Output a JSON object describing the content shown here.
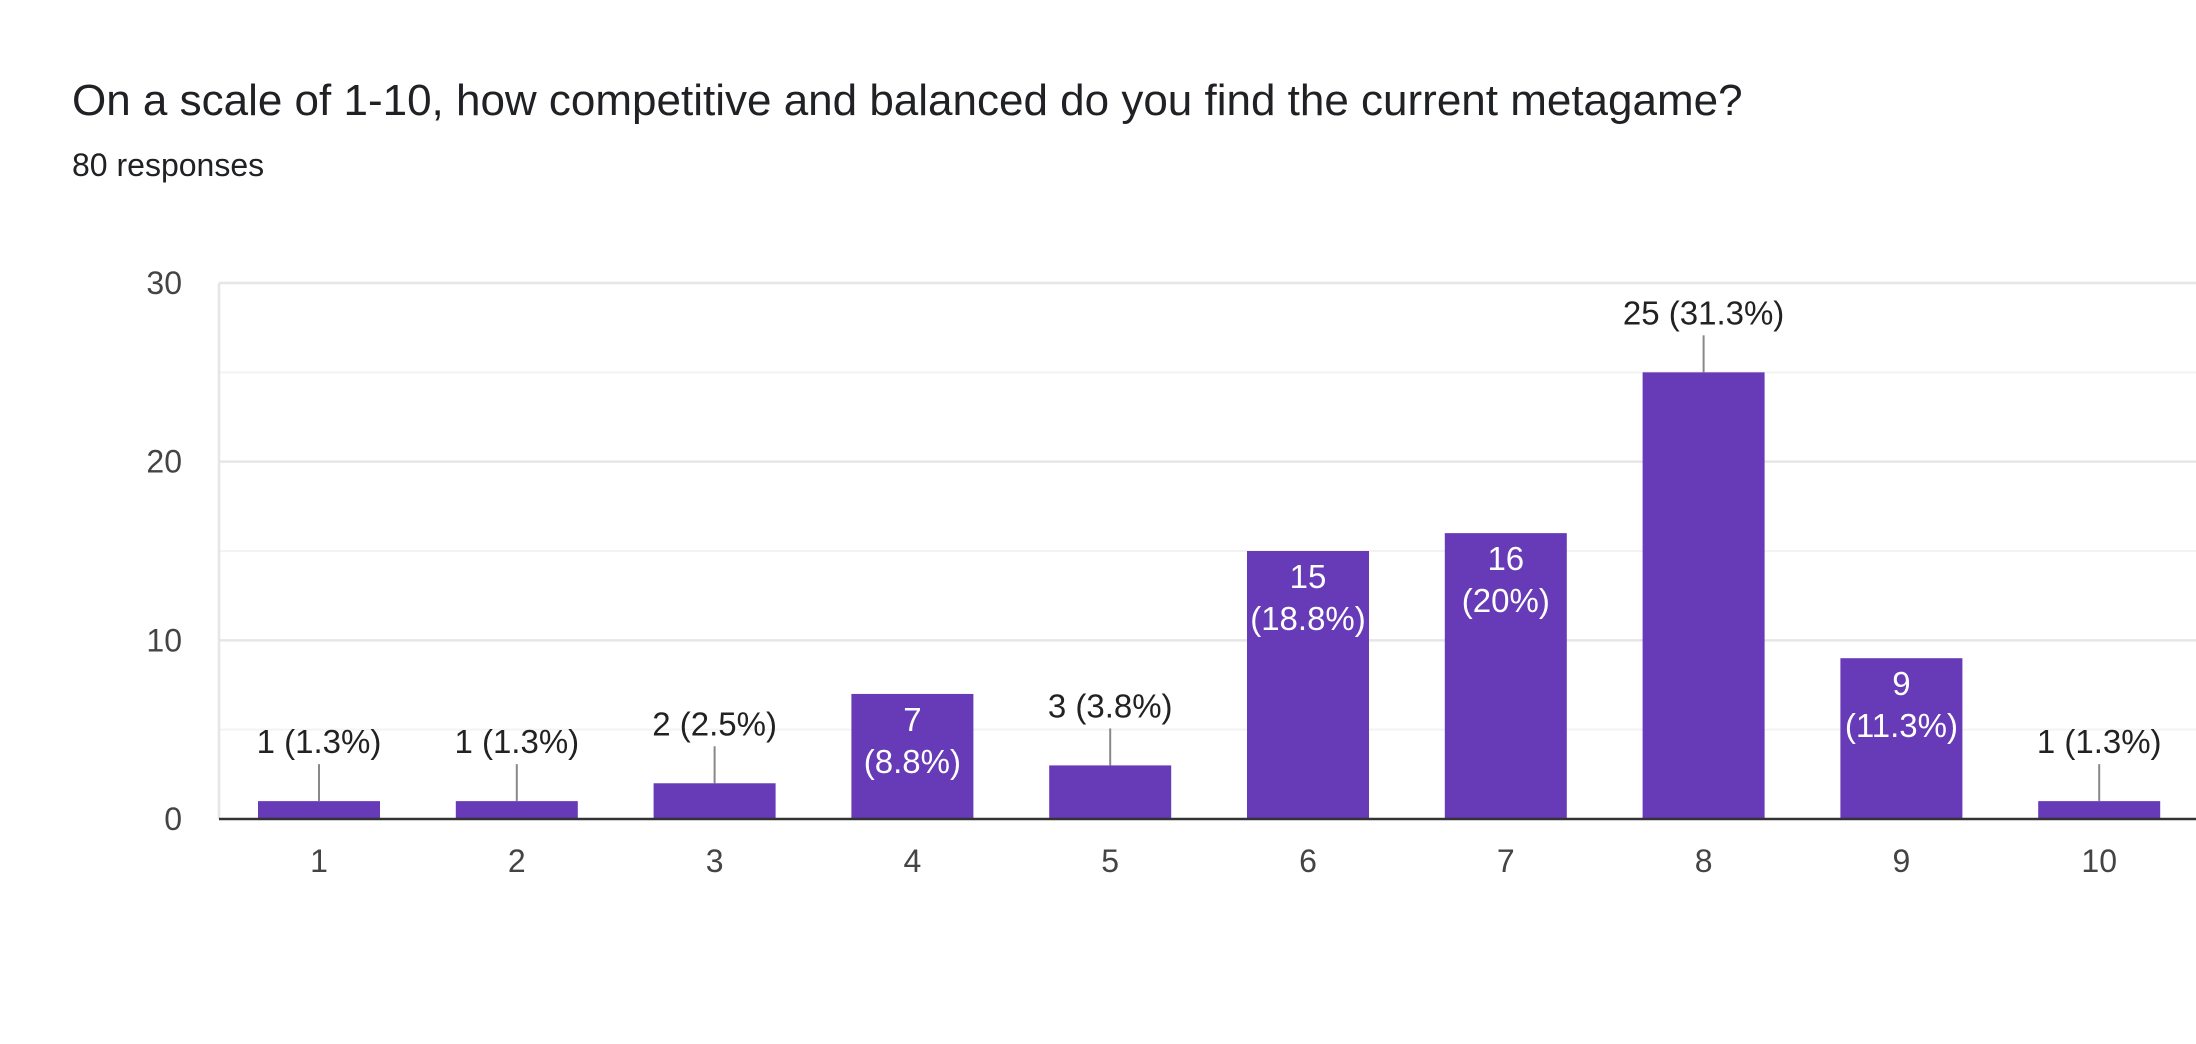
{
  "header": {
    "question": "On a scale of 1-10, how competitive and balanced do you find the current metagame?",
    "responses": "80 responses"
  },
  "colors": {
    "bar": "#673ab7",
    "gridline": "#ebebeb",
    "axis": "#333333",
    "leader": "#888888"
  },
  "chart_data": {
    "type": "bar",
    "categories": [
      "1",
      "2",
      "3",
      "4",
      "5",
      "6",
      "7",
      "8",
      "9",
      "10"
    ],
    "values": [
      1,
      1,
      2,
      7,
      3,
      15,
      16,
      25,
      9,
      1
    ],
    "labels": [
      "1 (1.3%)",
      "1 (1.3%)",
      "2 (2.5%)",
      "7 (8.8%)",
      "3 (3.8%)",
      "15 (18.8%)",
      "16 (20%)",
      "25 (31.3%)",
      "9 (11.3%)",
      "1 (1.3%)"
    ],
    "ylim": [
      0,
      30
    ],
    "yticks": [
      0,
      10,
      20,
      30
    ],
    "grid": true,
    "legend": "none",
    "title": "On a scale of 1-10, how competitive and balanced do you find the current metagame?",
    "xlabel": "",
    "ylabel": ""
  }
}
